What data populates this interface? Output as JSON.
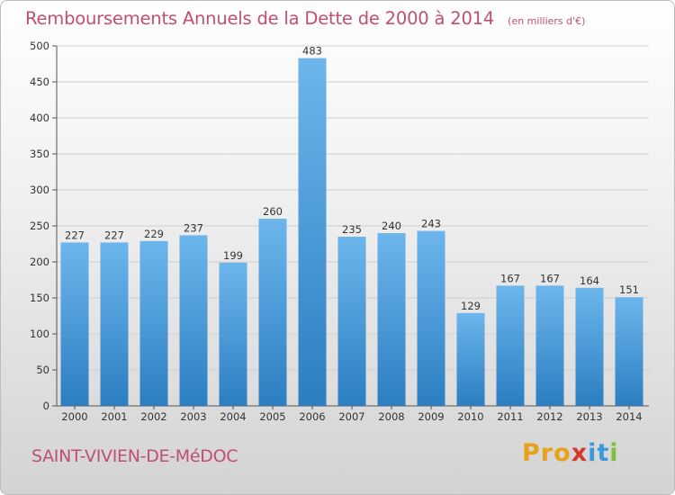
{
  "title": "Remboursements Annuels de la Dette de 2000 à 2014",
  "unit": "(en milliers d'€)",
  "commune": "SAINT-VIVIEN-DE-MéDOC",
  "logo": "Proxiti",
  "colors": {
    "title": "#c04f70",
    "bar_top": "#6cb6ec",
    "bar_bottom": "#2c7ec1",
    "grid": "#cfcfcf"
  },
  "chart_data": {
    "type": "bar",
    "categories": [
      "2000",
      "2001",
      "2002",
      "2003",
      "2004",
      "2005",
      "2006",
      "2007",
      "2008",
      "2009",
      "2010",
      "2011",
      "2012",
      "2013",
      "2014"
    ],
    "values": [
      227,
      227,
      229,
      237,
      199,
      260,
      483,
      235,
      240,
      243,
      129,
      167,
      167,
      164,
      151
    ],
    "ylim": [
      0,
      500
    ],
    "yticks": [
      0,
      50,
      100,
      150,
      200,
      250,
      300,
      350,
      400,
      450,
      500
    ],
    "grid": true,
    "xlabel": "",
    "ylabel": ""
  }
}
